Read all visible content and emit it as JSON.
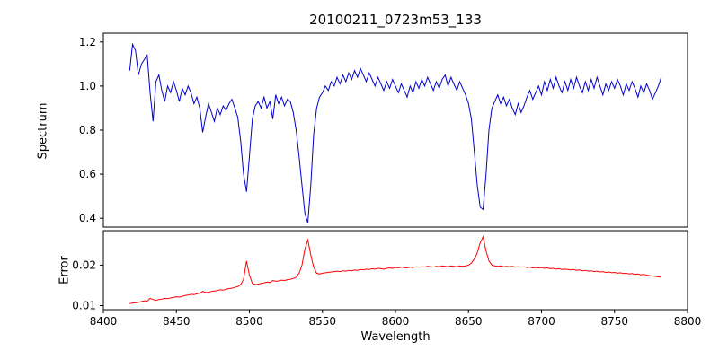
{
  "figure": {
    "title": "20100211_0723m53_133",
    "background": "#ffffff"
  },
  "chart_data": [
    {
      "type": "line",
      "name": "spectrum",
      "title": "20100211_0723m53_133",
      "ylabel": "Spectrum",
      "xlabel": "",
      "line_color": "#0000cc",
      "grid": false,
      "legend": false,
      "xlim": [
        8400,
        8800
      ],
      "ylim": [
        0.36,
        1.24
      ],
      "x_ticks": [],
      "x_tick_labels": [],
      "y_ticks": [
        0.4,
        0.6,
        0.8,
        1.0,
        1.2
      ],
      "y_tick_labels": [
        "0.4",
        "0.6",
        "0.8",
        "1.0",
        "1.2"
      ],
      "x_start": 8418,
      "x_step": 2,
      "y": [
        1.07,
        1.19,
        1.16,
        1.05,
        1.1,
        1.12,
        1.14,
        0.97,
        0.84,
        1.02,
        1.05,
        0.98,
        0.93,
        1.0,
        0.97,
        1.02,
        0.98,
        0.93,
        0.99,
        0.96,
        1.0,
        0.97,
        0.92,
        0.95,
        0.9,
        0.79,
        0.86,
        0.92,
        0.88,
        0.84,
        0.9,
        0.87,
        0.91,
        0.89,
        0.92,
        0.94,
        0.9,
        0.86,
        0.75,
        0.6,
        0.52,
        0.68,
        0.85,
        0.91,
        0.93,
        0.9,
        0.95,
        0.9,
        0.93,
        0.85,
        0.96,
        0.92,
        0.95,
        0.91,
        0.94,
        0.93,
        0.88,
        0.8,
        0.68,
        0.55,
        0.42,
        0.38,
        0.55,
        0.78,
        0.9,
        0.95,
        0.97,
        1.0,
        0.98,
        1.02,
        1.0,
        1.04,
        1.01,
        1.05,
        1.02,
        1.06,
        1.03,
        1.07,
        1.04,
        1.08,
        1.05,
        1.02,
        1.06,
        1.03,
        1.0,
        1.04,
        1.01,
        0.98,
        1.02,
        0.99,
        1.03,
        1.0,
        0.97,
        1.01,
        0.98,
        0.95,
        1.0,
        0.97,
        1.02,
        0.99,
        1.03,
        1.0,
        1.04,
        1.01,
        0.98,
        1.02,
        0.99,
        1.03,
        1.05,
        1.0,
        1.04,
        1.01,
        0.98,
        1.02,
        0.99,
        0.96,
        0.92,
        0.85,
        0.7,
        0.55,
        0.45,
        0.44,
        0.6,
        0.8,
        0.9,
        0.93,
        0.96,
        0.92,
        0.95,
        0.91,
        0.94,
        0.9,
        0.87,
        0.92,
        0.88,
        0.91,
        0.95,
        0.98,
        0.94,
        0.97,
        1.0,
        0.96,
        1.02,
        0.98,
        1.03,
        0.99,
        1.04,
        1.0,
        0.97,
        1.02,
        0.98,
        1.03,
        0.99,
        1.04,
        1.0,
        0.97,
        1.02,
        0.98,
        1.03,
        0.99,
        1.04,
        1.0,
        0.96,
        1.01,
        0.98,
        1.02,
        0.99,
        1.03,
        1.0,
        0.96,
        1.01,
        0.98,
        1.02,
        0.99,
        0.95,
        1.0,
        0.97,
        1.01,
        0.98,
        0.94,
        0.97,
        1.0,
        1.04
      ]
    },
    {
      "type": "line",
      "name": "error",
      "ylabel": "Error",
      "xlabel": "Wavelength",
      "line_color": "#ff0000",
      "grid": false,
      "legend": false,
      "xlim": [
        8400,
        8800
      ],
      "ylim": [
        0.009,
        0.0285
      ],
      "x_ticks": [
        8400,
        8450,
        8500,
        8550,
        8600,
        8650,
        8700,
        8750,
        8800
      ],
      "x_tick_labels": [
        "8400",
        "8450",
        "8500",
        "8550",
        "8600",
        "8650",
        "8700",
        "8750",
        "8800"
      ],
      "y_ticks": [
        0.01,
        0.02
      ],
      "y_tick_labels": [
        "0.01",
        "0.02"
      ],
      "x_start": 8418,
      "x_step": 2,
      "y": [
        0.0105,
        0.0106,
        0.0107,
        0.0108,
        0.011,
        0.0112,
        0.0111,
        0.0118,
        0.0115,
        0.0113,
        0.0115,
        0.0116,
        0.0118,
        0.0117,
        0.0119,
        0.012,
        0.0122,
        0.0121,
        0.0123,
        0.0125,
        0.0126,
        0.0128,
        0.0127,
        0.0129,
        0.0131,
        0.0135,
        0.0132,
        0.0133,
        0.0135,
        0.0136,
        0.0137,
        0.0139,
        0.0138,
        0.014,
        0.0142,
        0.0143,
        0.0145,
        0.0147,
        0.0152,
        0.0165,
        0.021,
        0.0175,
        0.0155,
        0.0152,
        0.0153,
        0.0155,
        0.0156,
        0.0158,
        0.0157,
        0.0162,
        0.016,
        0.0161,
        0.0163,
        0.0162,
        0.0164,
        0.0165,
        0.0167,
        0.017,
        0.018,
        0.02,
        0.024,
        0.0262,
        0.0225,
        0.0195,
        0.018,
        0.0178,
        0.018,
        0.0181,
        0.0182,
        0.0183,
        0.0184,
        0.0185,
        0.0184,
        0.0186,
        0.0185,
        0.0187,
        0.0186,
        0.0188,
        0.0187,
        0.0189,
        0.0188,
        0.019,
        0.0189,
        0.0191,
        0.019,
        0.0192,
        0.0191,
        0.019,
        0.0192,
        0.0193,
        0.0192,
        0.0194,
        0.0193,
        0.0195,
        0.0194,
        0.0193,
        0.0195,
        0.0194,
        0.0196,
        0.0195,
        0.0196,
        0.0195,
        0.0197,
        0.0196,
        0.0195,
        0.0197,
        0.0196,
        0.0198,
        0.0197,
        0.0196,
        0.0198,
        0.0197,
        0.0196,
        0.0198,
        0.0197,
        0.0198,
        0.02,
        0.0205,
        0.0215,
        0.023,
        0.0255,
        0.027,
        0.0235,
        0.021,
        0.02,
        0.0198,
        0.0197,
        0.0198,
        0.0196,
        0.0197,
        0.0196,
        0.0197,
        0.0195,
        0.0196,
        0.0195,
        0.0196,
        0.0194,
        0.0195,
        0.0193,
        0.0194,
        0.0193,
        0.0194,
        0.0192,
        0.0193,
        0.0191,
        0.0192,
        0.019,
        0.0191,
        0.0189,
        0.019,
        0.0189,
        0.0188,
        0.0189,
        0.0187,
        0.0188,
        0.0186,
        0.0187,
        0.0185,
        0.0186,
        0.0184,
        0.0185,
        0.0183,
        0.0184,
        0.0182,
        0.0183,
        0.0181,
        0.0182,
        0.018,
        0.0181,
        0.0179,
        0.018,
        0.0178,
        0.0179,
        0.0177,
        0.0178,
        0.0176,
        0.0177,
        0.0175,
        0.0174,
        0.0173,
        0.0172,
        0.0171,
        0.017
      ]
    }
  ]
}
